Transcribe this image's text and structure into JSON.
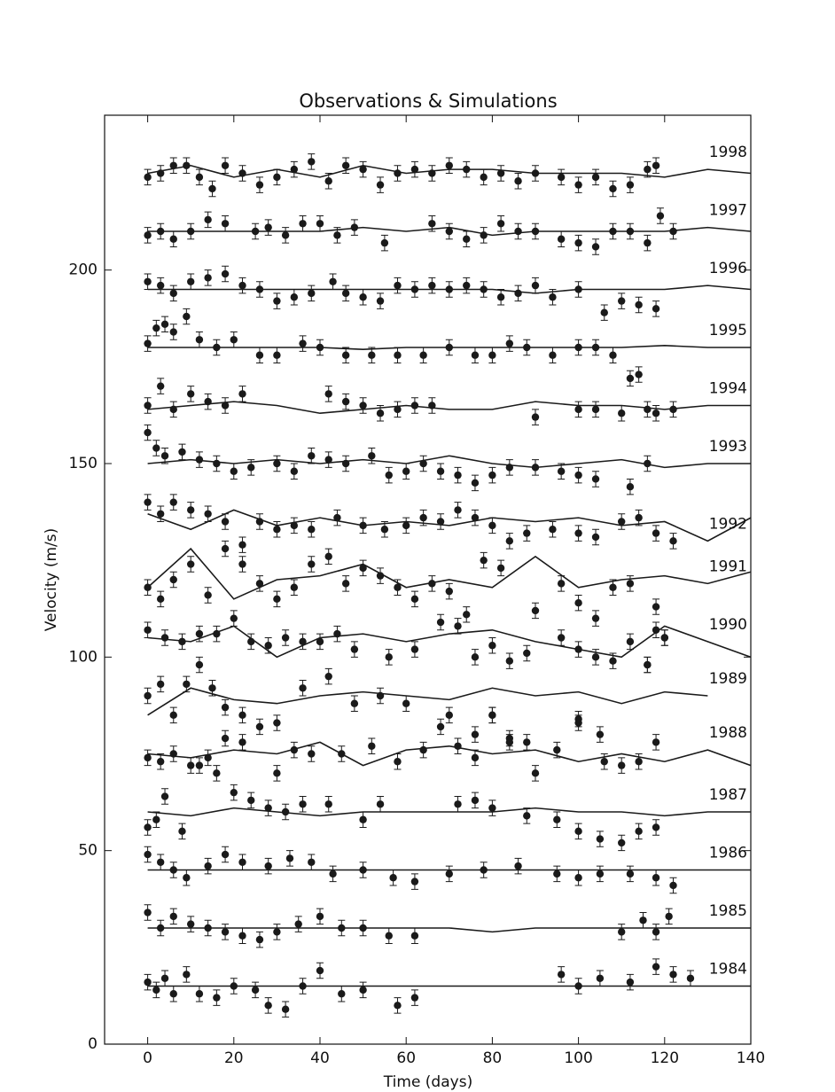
{
  "chart_data": {
    "type": "scatter",
    "title": "Observations & Simulations",
    "xlabel": "Time (days)",
    "ylabel": "Velocity (m/s)",
    "xlim": [
      -10,
      140
    ],
    "ylim": [
      0,
      240
    ],
    "xticks": [
      0,
      20,
      40,
      60,
      80,
      100,
      120,
      140
    ],
    "yticks": [
      0,
      50,
      100,
      150,
      200
    ],
    "color": "#1a1a1a",
    "sim_x": [
      0,
      10,
      20,
      30,
      40,
      50,
      60,
      70,
      80,
      90,
      100,
      110,
      120,
      130,
      140
    ],
    "series": [
      {
        "name": "1984",
        "error": 2,
        "x": [
          0,
          2,
          4,
          6,
          9,
          12,
          16,
          20,
          25,
          28,
          32,
          36,
          40,
          45,
          50,
          58,
          62,
          96,
          100,
          105,
          112,
          118,
          122,
          126
        ],
        "values": [
          16,
          14,
          17,
          13,
          18,
          13,
          12,
          15,
          14,
          10,
          9,
          15,
          19,
          13,
          14,
          10,
          12,
          18,
          15,
          17,
          16,
          20,
          18,
          17
        ],
        "sim": [
          15,
          15,
          15,
          15,
          15,
          15,
          15,
          15,
          15,
          15,
          15,
          15,
          15,
          15,
          15
        ]
      },
      {
        "name": "1985",
        "error": 2,
        "x": [
          0,
          3,
          6,
          10,
          14,
          18,
          22,
          26,
          30,
          35,
          40,
          45,
          50,
          56,
          62,
          110,
          115,
          118,
          121
        ],
        "values": [
          34,
          30,
          33,
          31,
          30,
          29,
          28,
          27,
          29,
          31,
          33,
          30,
          30,
          28,
          28,
          29,
          32,
          29,
          33
        ],
        "sim": [
          30,
          30,
          30,
          30,
          30,
          30,
          30,
          30,
          29,
          30,
          30,
          30,
          30,
          30,
          30
        ]
      },
      {
        "name": "1986",
        "error": 2,
        "x": [
          0,
          3,
          6,
          9,
          14,
          18,
          22,
          28,
          33,
          38,
          43,
          50,
          57,
          62,
          70,
          78,
          86,
          95,
          100,
          105,
          112,
          118,
          122
        ],
        "values": [
          49,
          47,
          45,
          43,
          46,
          49,
          47,
          46,
          48,
          47,
          44,
          45,
          43,
          42,
          44,
          45,
          46,
          44,
          43,
          44,
          44,
          43,
          41
        ],
        "sim": [
          45,
          45,
          45,
          45,
          45,
          45,
          45,
          45,
          45,
          45,
          45,
          45,
          45,
          45,
          45
        ]
      },
      {
        "name": "1987",
        "error": 2,
        "x": [
          0,
          2,
          4,
          8,
          12,
          16,
          20,
          24,
          28,
          32,
          36,
          42,
          50,
          54,
          72,
          76,
          80,
          88,
          95,
          100,
          105,
          110,
          114,
          118
        ],
        "values": [
          56,
          58,
          64,
          55,
          72,
          70,
          65,
          63,
          61,
          60,
          62,
          62,
          58,
          62,
          62,
          63,
          61,
          59,
          58,
          55,
          53,
          52,
          55,
          56
        ],
        "sim": [
          60,
          59,
          61,
          60,
          59,
          60,
          60,
          60,
          60,
          61,
          60,
          60,
          59,
          60,
          60
        ]
      },
      {
        "name": "1988",
        "error": 2,
        "x": [
          0,
          3,
          6,
          10,
          14,
          18,
          22,
          26,
          30,
          34,
          38,
          45,
          52,
          58,
          64,
          68,
          72,
          76,
          80,
          84,
          88,
          95,
          100,
          106,
          110,
          114,
          118
        ],
        "values": [
          74,
          73,
          75,
          72,
          74,
          79,
          78,
          82,
          70,
          76,
          75,
          75,
          77,
          73,
          76,
          82,
          77,
          74,
          85,
          79,
          78,
          76,
          83,
          73,
          72,
          73,
          78
        ],
        "sim": [
          75,
          74,
          76,
          75,
          78,
          72,
          76,
          77,
          75,
          76,
          73,
          75,
          73,
          76,
          72
        ]
      },
      {
        "name": "1989",
        "error": 2,
        "x": [
          0,
          3,
          6,
          9,
          12,
          15,
          18,
          22,
          30,
          36,
          42,
          48,
          54,
          60,
          70,
          76,
          80,
          84,
          90,
          100,
          105
        ],
        "values": [
          90,
          93,
          85,
          93,
          98,
          92,
          87,
          85,
          83,
          92,
          95,
          88,
          90,
          88,
          85,
          80,
          85,
          78,
          70,
          84,
          80
        ],
        "sim": [
          85,
          92,
          89,
          88,
          90,
          91,
          90,
          89,
          92,
          90,
          91,
          88,
          91,
          90,
          null
        ]
      },
      {
        "name": "1990",
        "error": 2,
        "x": [
          0,
          4,
          8,
          12,
          16,
          20,
          24,
          28,
          32,
          36,
          40,
          44,
          48,
          56,
          62,
          68,
          72,
          76,
          80,
          84,
          88,
          96,
          100,
          104,
          108,
          112,
          116,
          118,
          120
        ],
        "values": [
          107,
          105,
          104,
          106,
          106,
          110,
          104,
          103,
          105,
          104,
          104,
          106,
          102,
          100,
          102,
          109,
          108,
          100,
          103,
          99,
          101,
          105,
          102,
          100,
          99,
          104,
          98,
          107,
          105
        ],
        "sim": [
          105,
          104,
          108,
          100,
          105,
          106,
          104,
          106,
          107,
          104,
          102,
          100,
          108,
          104,
          100
        ]
      },
      {
        "name": "1991",
        "error": 2,
        "x": [
          0,
          3,
          6,
          10,
          14,
          18,
          22,
          26,
          30,
          34,
          38,
          42,
          46,
          50,
          54,
          58,
          62,
          66,
          70,
          74,
          78,
          82,
          90,
          96,
          100,
          104,
          108,
          112,
          116,
          118,
          120
        ],
        "values": [
          118,
          115,
          120,
          124,
          116,
          128,
          124,
          119,
          115,
          118,
          124,
          126,
          119,
          123,
          121,
          118,
          115,
          119,
          117,
          111,
          125,
          123,
          112,
          119,
          114,
          110,
          118,
          119,
          98,
          113,
          105
        ],
        "sim": [
          118,
          128,
          115,
          120,
          121,
          124,
          118,
          120,
          118,
          126,
          118,
          120,
          121,
          119,
          122
        ]
      },
      {
        "name": "1992",
        "error": 2,
        "x": [
          0,
          3,
          6,
          10,
          14,
          18,
          22,
          26,
          30,
          34,
          38,
          44,
          50,
          55,
          60,
          64,
          68,
          72,
          76,
          80,
          84,
          88,
          94,
          100,
          104,
          110,
          114,
          118,
          122
        ],
        "values": [
          140,
          137,
          140,
          138,
          137,
          135,
          129,
          135,
          133,
          134,
          133,
          136,
          134,
          133,
          134,
          136,
          135,
          138,
          136,
          134,
          130,
          132,
          133,
          132,
          131,
          135,
          136,
          132,
          130
        ],
        "sim": [
          137,
          133,
          138,
          134,
          136,
          134,
          135,
          134,
          136,
          135,
          136,
          134,
          135,
          130,
          136
        ]
      },
      {
        "name": "1993",
        "error": 2,
        "x": [
          0,
          2,
          4,
          8,
          12,
          16,
          20,
          24,
          30,
          34,
          38,
          42,
          46,
          52,
          56,
          60,
          64,
          68,
          72,
          76,
          80,
          84,
          90,
          96,
          100,
          104,
          112,
          116
        ],
        "values": [
          158,
          154,
          152,
          153,
          151,
          150,
          148,
          149,
          150,
          148,
          152,
          151,
          150,
          152,
          147,
          148,
          150,
          148,
          147,
          145,
          147,
          149,
          149,
          148,
          147,
          146,
          144,
          150
        ],
        "sim": [
          150,
          151,
          150,
          151,
          150,
          151,
          150,
          152,
          150,
          149,
          150,
          151,
          149,
          150,
          150
        ]
      },
      {
        "name": "1994",
        "error": 2,
        "x": [
          0,
          3,
          6,
          10,
          14,
          18,
          22,
          42,
          46,
          50,
          54,
          58,
          62,
          66,
          90,
          100,
          104,
          110,
          116,
          118,
          122
        ],
        "values": [
          165,
          170,
          164,
          168,
          166,
          165,
          168,
          168,
          166,
          165,
          163,
          164,
          165,
          165,
          162,
          164,
          164,
          163,
          164,
          163,
          164
        ],
        "sim": [
          164,
          165,
          166,
          165,
          163,
          164,
          165,
          164,
          164,
          166,
          165,
          165,
          164,
          165,
          165
        ]
      },
      {
        "name": "1995",
        "error": 2,
        "x": [
          0,
          2,
          4,
          6,
          9,
          12,
          16,
          20,
          26,
          30,
          36,
          40,
          46,
          52,
          58,
          64,
          70,
          76,
          80,
          84,
          88,
          94,
          100,
          104,
          108,
          112,
          114
        ],
        "values": [
          181,
          185,
          186,
          184,
          188,
          182,
          180,
          182,
          178,
          178,
          181,
          180,
          178,
          178,
          178,
          178,
          180,
          178,
          178,
          181,
          180,
          178,
          180,
          180,
          178,
          172,
          173
        ],
        "sim": [
          180,
          180,
          180,
          180,
          180,
          179.5,
          180,
          180,
          180,
          180,
          180,
          180,
          180.5,
          180,
          180
        ]
      },
      {
        "name": "1996",
        "error": 2,
        "x": [
          0,
          3,
          6,
          10,
          14,
          18,
          22,
          26,
          30,
          34,
          38,
          43,
          46,
          50,
          54,
          58,
          62,
          66,
          70,
          74,
          78,
          82,
          86,
          90,
          94,
          100,
          106,
          110,
          114,
          118
        ],
        "values": [
          197,
          196,
          194,
          197,
          198,
          199,
          196,
          195,
          192,
          193,
          194,
          197,
          194,
          193,
          192,
          196,
          195,
          196,
          195,
          196,
          195,
          193,
          194,
          196,
          193,
          195,
          189,
          192,
          191,
          190
        ],
        "sim": [
          195,
          195,
          195,
          195,
          195,
          195,
          195,
          195,
          195,
          194,
          195,
          195,
          195,
          196,
          195
        ]
      },
      {
        "name": "1997",
        "error": 2,
        "x": [
          0,
          3,
          6,
          10,
          14,
          18,
          25,
          28,
          32,
          36,
          40,
          44,
          48,
          55,
          66,
          70,
          74,
          78,
          82,
          86,
          90,
          96,
          100,
          104,
          108,
          112,
          116,
          119,
          122
        ],
        "values": [
          209,
          210,
          208,
          210,
          213,
          212,
          210,
          211,
          209,
          212,
          212,
          209,
          211,
          207,
          212,
          210,
          208,
          209,
          212,
          210,
          210,
          208,
          207,
          206,
          210,
          210,
          207,
          214,
          210
        ],
        "sim": [
          210,
          210,
          210,
          210,
          210,
          211,
          210,
          211,
          209,
          210,
          210,
          210,
          210,
          211,
          210
        ]
      },
      {
        "name": "1998",
        "error": 2,
        "x": [
          0,
          3,
          6,
          9,
          12,
          15,
          18,
          22,
          26,
          30,
          34,
          38,
          42,
          46,
          50,
          54,
          58,
          62,
          66,
          70,
          74,
          78,
          82,
          86,
          90,
          96,
          100,
          104,
          108,
          112,
          116,
          118
        ],
        "values": [
          224,
          225,
          227,
          227,
          224,
          221,
          227,
          225,
          222,
          224,
          226,
          228,
          223,
          227,
          226,
          222,
          225,
          226,
          225,
          227,
          226,
          224,
          225,
          223,
          225,
          224,
          222,
          224,
          221,
          222,
          226,
          227
        ],
        "sim": [
          225,
          227,
          224,
          226,
          224,
          227,
          225,
          226,
          226,
          225,
          225,
          225,
          224,
          226,
          225
        ]
      }
    ]
  }
}
